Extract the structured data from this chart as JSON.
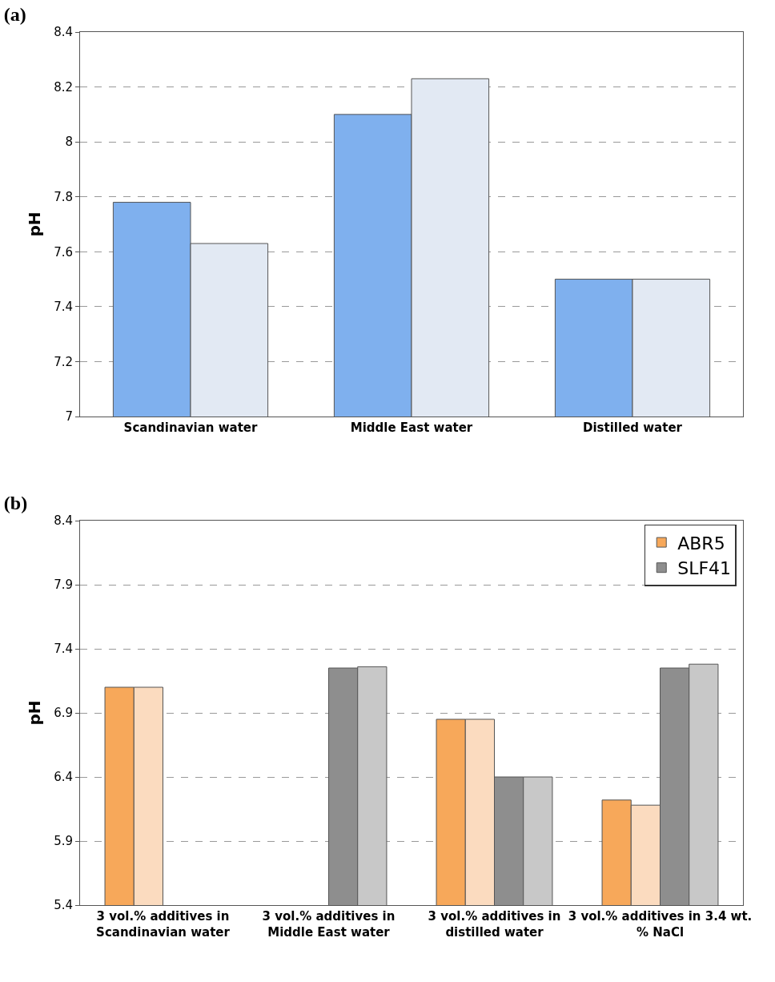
{
  "chart_data": [
    {
      "type": "bar",
      "title": "(a)",
      "ylabel": "pH",
      "categories": [
        "Scandinavian water",
        "Middle East water",
        "Distilled water"
      ],
      "series": [
        {
          "color": "#7fb0ee",
          "values": [
            7.78,
            8.1,
            7.5
          ]
        },
        {
          "color": "#e2e9f3",
          "values": [
            7.63,
            8.23,
            7.5
          ]
        }
      ],
      "ylim": [
        7,
        8.4
      ],
      "yticks": [
        7,
        7.2,
        7.4,
        7.6,
        7.8,
        8,
        8.2,
        8.4
      ],
      "grid": "y",
      "line_style": "dashed"
    },
    {
      "type": "bar",
      "title": "(b)",
      "ylabel": "pH",
      "categories": [
        "3 vol.% additives in\nScandinavian water",
        "3 vol.% additives in\nMiddle East water",
        "3 vol.% additives in\ndistilled water",
        "3 vol.% additives in 3.4 wt.\n% NaCl"
      ],
      "series": [
        {
          "name": "ABR5",
          "color": "#f7a85a",
          "values": [
            7.1,
            null,
            6.85,
            6.22
          ]
        },
        {
          "color": "#fbdbbf",
          "values": [
            7.1,
            null,
            6.85,
            6.18
          ]
        },
        {
          "name": "SLF41",
          "color": "#8e8e8e",
          "values": [
            null,
            7.25,
            6.4,
            7.25
          ]
        },
        {
          "color": "#c8c8c8",
          "values": [
            null,
            7.26,
            6.4,
            7.28
          ]
        }
      ],
      "ylim": [
        5.4,
        8.4
      ],
      "yticks": [
        5.4,
        5.9,
        6.4,
        6.9,
        7.4,
        7.9,
        8.4
      ],
      "grid": "y",
      "line_style": "dashed",
      "legend": "top right"
    }
  ]
}
